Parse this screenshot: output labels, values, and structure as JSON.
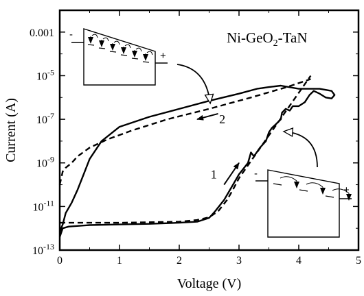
{
  "chart_data": {
    "type": "line",
    "title": "Ni-GeO2-TaN",
    "title_parts": {
      "main": "Ni-GeO",
      "sub": "2",
      "tail": "-TaN"
    },
    "xlabel": "Voltage (V)",
    "ylabel": "Current (A)",
    "xlim": [
      0,
      5
    ],
    "ylim_log10": [
      -13,
      -2
    ],
    "y_scale": "log",
    "x_ticks": [
      0,
      1,
      2,
      3,
      4,
      5
    ],
    "y_ticks": [
      {
        "exp": -3,
        "label": "0.001"
      },
      {
        "exp": -5,
        "base": "10",
        "sup": "-5"
      },
      {
        "exp": -7,
        "base": "10",
        "sup": "-7"
      },
      {
        "exp": -9,
        "base": "10",
        "sup": "-9"
      },
      {
        "exp": -11,
        "base": "10",
        "sup": "-11"
      },
      {
        "exp": -13,
        "base": "10",
        "sup": "-13"
      }
    ],
    "grid": false,
    "series": [
      {
        "style": "solid",
        "points": [
          [
            0.0,
            4e-13
          ],
          [
            0.05,
            1e-12
          ],
          [
            0.15,
            1.2e-12
          ],
          [
            0.5,
            1.4e-12
          ],
          [
            1.0,
            1.5e-12
          ],
          [
            1.5,
            1.6e-12
          ],
          [
            2.0,
            1.8e-12
          ],
          [
            2.3,
            2e-12
          ],
          [
            2.5,
            3e-12
          ],
          [
            2.6,
            6e-12
          ],
          [
            2.75,
            2e-11
          ],
          [
            2.9,
            1e-10
          ],
          [
            3.0,
            3e-10
          ],
          [
            3.15,
            1e-09
          ],
          [
            3.2,
            3e-09
          ],
          [
            3.25,
            2e-09
          ],
          [
            3.35,
            5e-09
          ],
          [
            3.45,
            1e-08
          ],
          [
            3.5,
            2.5e-08
          ],
          [
            3.55,
            4e-08
          ],
          [
            3.62,
            6e-08
          ],
          [
            3.7,
            1e-07
          ],
          [
            3.72,
            2e-07
          ],
          [
            3.78,
            3e-07
          ],
          [
            3.85,
            2.5e-07
          ],
          [
            3.9,
            4e-07
          ],
          [
            4.0,
            4e-07
          ],
          [
            4.1,
            6e-07
          ],
          [
            4.18,
            1.3e-06
          ],
          [
            4.25,
            2e-06
          ],
          [
            4.35,
            1.5e-06
          ],
          [
            4.45,
            1e-06
          ],
          [
            4.55,
            9e-07
          ],
          [
            4.6,
            1.3e-06
          ],
          [
            4.55,
            2e-06
          ],
          [
            4.35,
            2.5e-06
          ],
          [
            4.0,
            2.5e-06
          ],
          [
            3.7,
            3.5e-06
          ],
          [
            3.5,
            3e-06
          ],
          [
            3.3,
            2.5e-06
          ],
          [
            3.0,
            1.5e-06
          ],
          [
            2.5,
            7e-07
          ],
          [
            2.0,
            3e-07
          ],
          [
            1.5,
            1.3e-07
          ],
          [
            1.0,
            4.5e-08
          ],
          [
            0.7,
            1e-08
          ],
          [
            0.5,
            1.5e-09
          ],
          [
            0.4,
            3e-10
          ],
          [
            0.3,
            6e-11
          ],
          [
            0.2,
            1.5e-11
          ],
          [
            0.1,
            5e-12
          ],
          [
            0.05,
            1.5e-12
          ],
          [
            0.0,
            7e-13
          ]
        ]
      },
      {
        "style": "dashed",
        "points": [
          [
            0.0,
            1.8e-12
          ],
          [
            0.5,
            1.8e-12
          ],
          [
            1.0,
            1.8e-12
          ],
          [
            1.5,
            1.9e-12
          ],
          [
            2.0,
            2e-12
          ],
          [
            2.3,
            2.4e-12
          ],
          [
            2.5,
            3.2e-12
          ],
          [
            2.65,
            6e-12
          ],
          [
            2.8,
            2e-11
          ],
          [
            2.9,
            6e-11
          ],
          [
            3.0,
            2e-10
          ],
          [
            4.2,
            1e-05
          ]
        ]
      },
      {
        "style": "dashed",
        "points": [
          [
            0.0,
            1e-10
          ],
          [
            0.05,
            4e-10
          ],
          [
            0.1,
            6e-10
          ],
          [
            0.2,
            1e-09
          ],
          [
            0.3,
            2e-09
          ],
          [
            0.5,
            5e-09
          ],
          [
            0.8,
            1.2e-08
          ],
          [
            1.2,
            3e-08
          ],
          [
            1.8,
            1e-07
          ],
          [
            2.5,
            3e-07
          ],
          [
            3.2,
            1e-06
          ],
          [
            3.8,
            3e-06
          ],
          [
            4.2,
            7e-06
          ]
        ]
      }
    ],
    "annotations": [
      {
        "text": "1",
        "at": [
          2.67,
          3e-10
        ],
        "arrow_from": [
          2.75,
          1e-10
        ],
        "arrow_to": [
          3.0,
          1e-09
        ]
      },
      {
        "text": "2",
        "at": [
          2.72,
          1e-07
        ],
        "arrow_from": [
          2.65,
          1.8e-07
        ],
        "arrow_to": [
          2.3,
          1e-07
        ]
      }
    ],
    "insets": [
      {
        "plus_label": "+",
        "minus_label": "-"
      },
      {
        "plus_label": "+",
        "minus_label": "-"
      }
    ]
  }
}
